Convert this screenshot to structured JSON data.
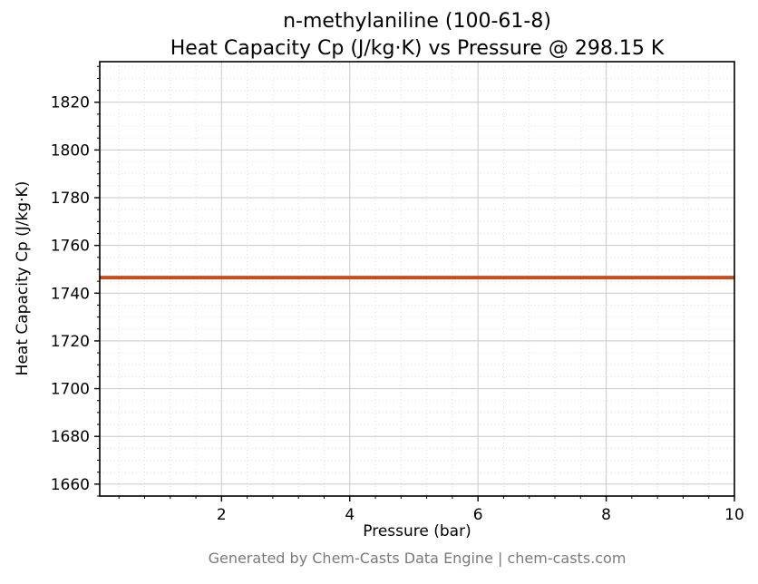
{
  "footer": {
    "text": "Generated by Chem-Casts Data Engine | chem-casts.com"
  },
  "colors": {
    "line": "#c44e22",
    "grid_major": "#c9c9c9",
    "grid_minor": "#dedede",
    "axis": "#000000",
    "footer_text": "#7a7a7a"
  },
  "chart_data": {
    "type": "line",
    "title": "n-methylaniline (100-61-8)",
    "subtitle": "Heat Capacity Cp (J/kg·K) vs Pressure @ 298.15 K",
    "xlabel": "Pressure (bar)",
    "ylabel": "Heat Capacity Cp (J/kg·K)",
    "x_ticks": [
      2,
      4,
      6,
      8,
      10
    ],
    "y_ticks": [
      1660,
      1680,
      1700,
      1720,
      1740,
      1760,
      1780,
      1800,
      1820
    ],
    "xlim": [
      0.1,
      10
    ],
    "ylim": [
      1655,
      1837
    ],
    "x_minor_step": 0.4,
    "y_minor_step": 5,
    "grid": true,
    "legend": "none",
    "series": [
      {
        "name": "Heat Capacity Cp",
        "color": "#c44e22",
        "x": [
          0.1,
          2,
          4,
          6,
          8,
          10
        ],
        "y": [
          1746.5,
          1746.5,
          1746.5,
          1746.5,
          1746.5,
          1746.5
        ]
      }
    ]
  }
}
